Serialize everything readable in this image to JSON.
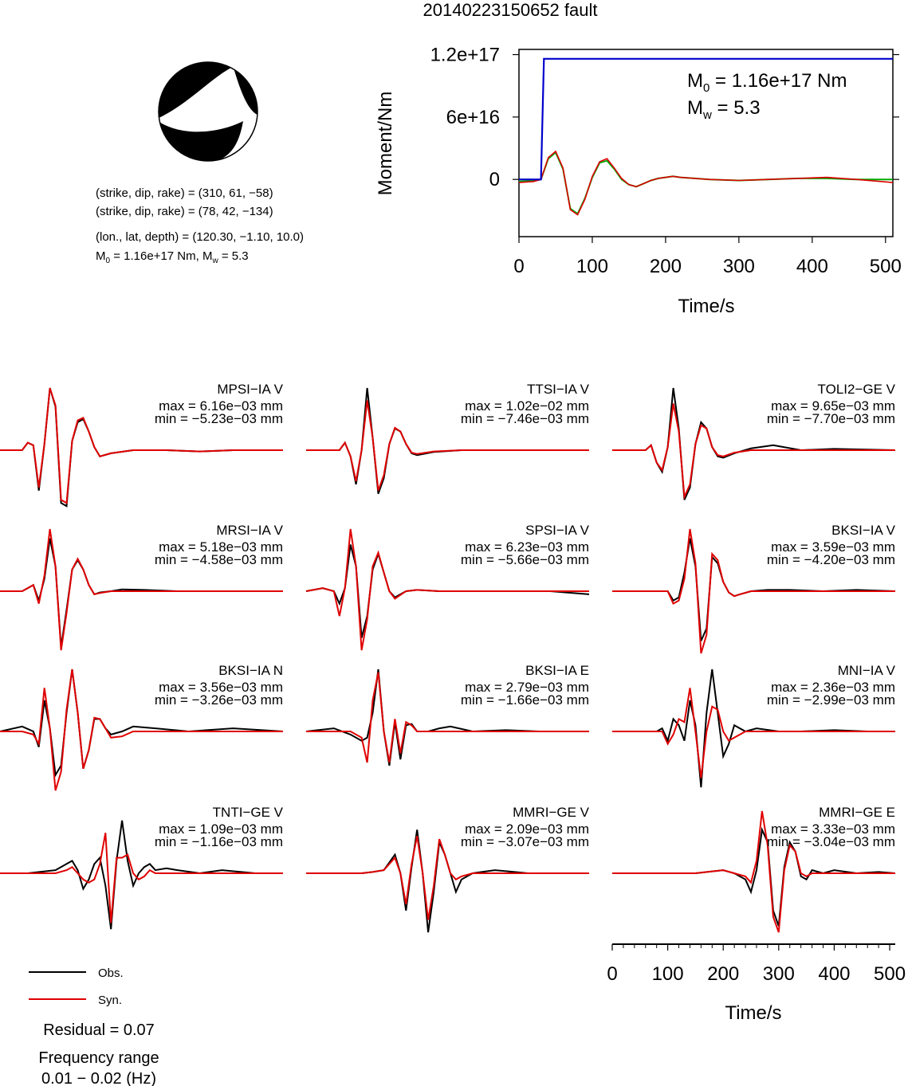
{
  "title": "20140223150652 fault",
  "colors": {
    "obs": "#000000",
    "syn": "#e00000",
    "moment": "#0000cc",
    "stf": "#00aa00",
    "axis": "#000000"
  },
  "mechanism": {
    "plane1": "(strike, dip, rake) = (310, 61, −58)",
    "plane2": "(strike, dip, rake) = (78, 42, −134)",
    "location": "(lon., lat, depth) = (120.30, −1.10, 10.0)",
    "m0_prefix": "M",
    "m0_sub": "0",
    "m0_rest": " = 1.16e+17 Nm, M",
    "mw_sub": "w",
    "mw_rest": " = 5.3"
  },
  "legend": {
    "obs": "Obs.",
    "syn": "Syn."
  },
  "residual": "Residual = 0.07",
  "frequency_label": "Frequency range",
  "frequency_value": "0.01 − 0.02 (Hz)",
  "chart_data": [
    {
      "type": "line",
      "name": "moment-plot",
      "xlabel": "Time/s",
      "ylabel": "Moment/Nm",
      "xlim": [
        0,
        510
      ],
      "ylim": [
        -5.5e+16,
        1.25e+17
      ],
      "xticks": [
        0,
        100,
        200,
        300,
        400,
        500
      ],
      "xtick_labels": [
        "0",
        "100",
        "200",
        "300",
        "400",
        "500"
      ],
      "yticks": [
        0,
        6e+16,
        1.2e+17
      ],
      "ytick_labels": [
        "0",
        "6e+16",
        "1.2e+17"
      ],
      "annotation": {
        "m0_prefix": "M",
        "m0_sub": "0",
        "m0_rest": " = 1.16e+17 Nm",
        "mw_prefix": "M",
        "mw_sub": "w",
        "mw_rest": " = 5.3"
      },
      "moment": {
        "x": [
          0,
          30,
          34,
          510
        ],
        "y": [
          0,
          0,
          1.16e+17,
          1.16e+17
        ]
      },
      "stf_curves": {
        "x": [
          0,
          20,
          30,
          40,
          50,
          60,
          70,
          80,
          90,
          100,
          110,
          120,
          130,
          140,
          150,
          160,
          170,
          180,
          190,
          200,
          210,
          220,
          240,
          260,
          300,
          340,
          380,
          420,
          460,
          510
        ],
        "green": [
          -2000000000000000.0,
          -1000000000000000.0,
          0,
          2e+16,
          2.6e+16,
          1e+16,
          -2.8e+16,
          -3.3e+16,
          -1.8e+16,
          2000000000000000.0,
          1.6e+16,
          1.8e+16,
          1e+16,
          0,
          -5000000000000000.0,
          -7000000000000000.0,
          -4000000000000000.0,
          -1000000000000000.0,
          1000000000000000.0,
          2000000000000000.0,
          3000000000000000.0,
          2000000000000000.0,
          1000000000000000.0,
          0,
          -1000000000000000.0,
          0,
          1000000000000000.0,
          1000000000000000.0,
          0,
          0
        ],
        "red": [
          -3000000000000000.0,
          -2000000000000000.0,
          0,
          2.1e+16,
          2.7e+16,
          1.1e+16,
          -2.9e+16,
          -3.4e+16,
          -1.9e+16,
          3000000000000000.0,
          1.7e+16,
          2e+16,
          1.1e+16,
          1000000000000000.0,
          -5000000000000000.0,
          -7000000000000000.0,
          -4000000000000000.0,
          -1000000000000000.0,
          1000000000000000.0,
          2000000000000000.0,
          3000000000000000.0,
          2000000000000000.0,
          1000000000000000.0,
          0,
          -1000000000000000.0,
          0,
          1000000000000000.0,
          2000000000000000.0,
          0,
          -3000000000000000.0
        ]
      }
    },
    {
      "type": "line",
      "name": "waveform-time-axis",
      "xlabel": "Time/s",
      "xlim": [
        0,
        510
      ],
      "xticks": [
        0,
        100,
        200,
        300,
        400,
        500
      ],
      "xtick_labels": [
        "0",
        "100",
        "200",
        "300",
        "400",
        "500"
      ]
    }
  ],
  "stations": [
    {
      "name": "MPSI−IA V",
      "max": "max = 6.16e−03 mm",
      "min": "min = −5.23e−03 mm",
      "x": [
        0,
        40,
        50,
        60,
        70,
        80,
        90,
        100,
        110,
        120,
        130,
        140,
        150,
        160,
        170,
        180,
        200,
        240,
        300,
        360,
        420,
        510
      ],
      "obs": [
        0,
        0,
        0.12,
        0.08,
        -0.65,
        0.1,
        1.0,
        0.7,
        -0.85,
        -0.9,
        0.15,
        0.45,
        0.5,
        0.3,
        0.05,
        -0.1,
        -0.05,
        0,
        0,
        -0.02,
        0,
        0
      ],
      "syn": [
        0,
        0,
        0.12,
        0.08,
        -0.6,
        0.1,
        1.0,
        0.72,
        -0.8,
        -0.85,
        0.15,
        0.48,
        0.52,
        0.3,
        0.05,
        -0.1,
        -0.05,
        0,
        0,
        -0.02,
        0,
        0
      ]
    },
    {
      "name": "TTSI−IA V",
      "max": "max = 1.02e−02 mm",
      "min": "min = −7.46e−03 mm",
      "x": [
        0,
        60,
        70,
        80,
        90,
        100,
        110,
        120,
        130,
        140,
        150,
        160,
        170,
        180,
        190,
        200,
        230,
        280,
        340,
        400,
        460,
        510
      ],
      "obs": [
        0,
        0,
        0.12,
        -0.1,
        -0.55,
        0.0,
        1.0,
        0.2,
        -0.7,
        -0.45,
        0.1,
        0.35,
        0.3,
        0.1,
        -0.05,
        -0.08,
        -0.03,
        0,
        0,
        0,
        0,
        0
      ],
      "syn": [
        0,
        0,
        0.12,
        -0.1,
        -0.5,
        0.0,
        0.8,
        0.2,
        -0.65,
        -0.4,
        0.1,
        0.36,
        0.3,
        0.1,
        -0.04,
        -0.06,
        -0.02,
        0,
        0,
        0,
        0,
        0
      ]
    },
    {
      "name": "TOLI2−GE V",
      "max": "max = 9.65e−03 mm",
      "min": "min = −7.70e−03 mm",
      "x": [
        0,
        60,
        70,
        80,
        90,
        100,
        110,
        120,
        130,
        140,
        150,
        160,
        170,
        180,
        190,
        200,
        220,
        250,
        290,
        340,
        400,
        510
      ],
      "obs": [
        0,
        0,
        0.08,
        -0.2,
        -0.35,
        0.05,
        1.0,
        0.35,
        -0.8,
        -0.6,
        0.1,
        0.45,
        0.35,
        0.05,
        -0.1,
        -0.12,
        -0.05,
        0.03,
        0.08,
        0.0,
        0.02,
        0
      ],
      "syn": [
        0,
        0,
        0.08,
        -0.2,
        -0.32,
        0.05,
        0.75,
        0.3,
        -0.75,
        -0.55,
        0.1,
        0.4,
        0.35,
        0.05,
        -0.08,
        -0.1,
        -0.04,
        0.0,
        0.0,
        0.0,
        0.0,
        0
      ]
    },
    {
      "name": "MRSI−IA V",
      "max": "max = 5.18e−03 mm",
      "min": "min = −4.58e−03 mm",
      "x": [
        0,
        40,
        50,
        60,
        70,
        80,
        90,
        100,
        110,
        120,
        130,
        140,
        150,
        160,
        170,
        180,
        200,
        220,
        260,
        320,
        400,
        510
      ],
      "obs": [
        0,
        0,
        0.05,
        0.1,
        -0.15,
        0.2,
        0.85,
        0.4,
        -0.9,
        -0.3,
        0.35,
        0.5,
        0.35,
        0.1,
        -0.05,
        -0.02,
        0.0,
        0.03,
        0.02,
        0,
        0,
        0
      ],
      "syn": [
        0,
        0,
        0.05,
        0.1,
        -0.2,
        0.25,
        1.0,
        0.4,
        -0.95,
        -0.35,
        0.35,
        0.52,
        0.35,
        0.1,
        -0.05,
        -0.03,
        0.0,
        0.0,
        0.0,
        0,
        0,
        0
      ]
    },
    {
      "name": "SPSI−IA V",
      "max": "max = 6.23e−03 mm",
      "min": "min = −5.66e−03 mm",
      "x": [
        0,
        30,
        50,
        60,
        70,
        80,
        90,
        100,
        110,
        120,
        130,
        140,
        150,
        160,
        170,
        180,
        200,
        240,
        300,
        360,
        440,
        510
      ],
      "obs": [
        0,
        0.05,
        0.0,
        -0.2,
        0.05,
        0.75,
        0.4,
        -0.75,
        -0.4,
        0.35,
        0.6,
        0.3,
        0.0,
        -0.1,
        -0.05,
        0.0,
        0.02,
        0,
        0,
        0,
        0,
        -0.05
      ],
      "syn": [
        0,
        0.05,
        0.0,
        -0.4,
        0.05,
        1.0,
        0.4,
        -0.95,
        -0.45,
        0.4,
        0.62,
        0.3,
        0.0,
        -0.12,
        -0.06,
        0.0,
        0.02,
        0,
        0,
        0,
        0,
        0
      ]
    },
    {
      "name": "BKSI−IA V",
      "max": "max = 3.59e−03 mm",
      "min": "min = −4.20e−03 mm",
      "x": [
        0,
        80,
        100,
        110,
        120,
        130,
        140,
        150,
        160,
        170,
        180,
        190,
        200,
        210,
        220,
        230,
        250,
        280,
        320,
        380,
        440,
        510
      ],
      "obs": [
        0,
        0,
        0.0,
        -0.15,
        -0.1,
        0.3,
        0.85,
        0.4,
        -0.8,
        -0.6,
        0.55,
        0.45,
        0.15,
        -0.02,
        -0.08,
        -0.05,
        0.0,
        0.02,
        0.02,
        0,
        0.02,
        0
      ],
      "syn": [
        0,
        0,
        0.0,
        -0.2,
        -0.15,
        0.2,
        1.0,
        0.45,
        -1.0,
        -0.7,
        0.6,
        0.5,
        0.15,
        -0.02,
        -0.08,
        -0.05,
        0.0,
        0.0,
        0.0,
        0,
        0,
        0
      ]
    },
    {
      "name": "BKSI−IA N",
      "max": "max = 3.56e−03 mm",
      "min": "min = −3.26e−03 mm",
      "x": [
        0,
        40,
        60,
        70,
        80,
        90,
        100,
        110,
        120,
        130,
        140,
        150,
        160,
        170,
        180,
        190,
        200,
        220,
        240,
        280,
        340,
        420,
        510
      ],
      "obs": [
        0,
        0.08,
        0.0,
        -0.25,
        0.5,
        0.05,
        -0.7,
        -0.55,
        0.3,
        1.0,
        0.3,
        -0.6,
        -0.3,
        0.2,
        0.2,
        0.05,
        -0.05,
        0.0,
        0.08,
        0.05,
        0.0,
        0.05,
        0
      ],
      "syn": [
        0,
        0.0,
        -0.05,
        -0.2,
        0.7,
        0.05,
        -0.95,
        -0.65,
        0.35,
        1.0,
        0.3,
        -0.6,
        -0.3,
        0.22,
        0.2,
        0.05,
        -0.1,
        -0.08,
        0.0,
        0.0,
        0.0,
        0.0,
        0
      ]
    },
    {
      "name": "BKSI−IA E",
      "max": "max = 2.79e−03 mm",
      "min": "min = −1.66e−03 mm",
      "x": [
        0,
        50,
        80,
        100,
        110,
        120,
        130,
        140,
        150,
        160,
        170,
        180,
        190,
        200,
        220,
        240,
        260,
        300,
        360,
        420,
        510
      ],
      "obs": [
        0,
        0.05,
        -0.05,
        -0.15,
        -0.1,
        0.3,
        1.0,
        0.0,
        -0.55,
        0.15,
        -0.45,
        0.1,
        0.12,
        0.0,
        0.0,
        0.05,
        0.08,
        0.0,
        0.02,
        0.0,
        0
      ],
      "syn": [
        0,
        0.0,
        0.0,
        -0.1,
        -0.5,
        0.5,
        0.95,
        0.0,
        -0.5,
        0.2,
        -0.35,
        0.15,
        0.1,
        0.0,
        0.0,
        0.0,
        0.0,
        0.0,
        0.0,
        0.0,
        0
      ]
    },
    {
      "name": "MNI−IA V",
      "max": "max = 2.36e−03 mm",
      "min": "min = −2.99e−03 mm",
      "x": [
        0,
        60,
        80,
        90,
        100,
        110,
        120,
        130,
        140,
        150,
        160,
        170,
        180,
        190,
        200,
        210,
        220,
        240,
        260,
        300,
        340,
        400,
        460,
        510
      ],
      "obs": [
        0,
        0.0,
        0.0,
        0.05,
        -0.15,
        0.2,
        0.1,
        -0.15,
        0.5,
        0.1,
        -0.9,
        0.3,
        1.0,
        0.3,
        -0.4,
        -0.2,
        0.1,
        0.0,
        0.05,
        0.0,
        0.0,
        0.02,
        0.0,
        0
      ],
      "syn": [
        0,
        0.0,
        0.0,
        0.0,
        -0.2,
        -0.05,
        0.2,
        0.15,
        0.7,
        0.0,
        -0.75,
        0.0,
        0.4,
        0.35,
        0.0,
        -0.15,
        -0.1,
        0.0,
        0.0,
        0.0,
        0.0,
        0.0,
        0.0,
        0
      ]
    },
    {
      "name": "TNTI−GE V",
      "max": "max = 1.09e−03 mm",
      "min": "min = −1.16e−03 mm",
      "x": [
        0,
        50,
        100,
        120,
        130,
        140,
        150,
        160,
        170,
        180,
        190,
        200,
        210,
        220,
        230,
        240,
        250,
        260,
        270,
        280,
        300,
        320,
        360,
        400,
        460,
        510
      ],
      "obs": [
        0,
        0.0,
        0.05,
        0.15,
        0.2,
        0.05,
        -0.25,
        -0.1,
        0.15,
        0.25,
        -0.2,
        -0.9,
        0.2,
        0.85,
        0.2,
        -0.2,
        0.0,
        0.1,
        0.15,
        0.05,
        0.08,
        0.05,
        0.0,
        0.05,
        0.0,
        0
      ],
      "syn": [
        0,
        0.0,
        0.0,
        0.05,
        0.1,
        0.0,
        -0.1,
        -0.15,
        -0.1,
        0.15,
        0.65,
        -0.8,
        0.25,
        0.25,
        0.3,
        0.0,
        -0.1,
        -0.05,
        0.05,
        0.0,
        0.0,
        0.0,
        0.0,
        0.0,
        0.0,
        0
      ]
    },
    {
      "name": "MMRI−GE V",
      "max": "max = 2.09e−03 mm",
      "min": "min = −3.07e−03 mm",
      "x": [
        0,
        60,
        100,
        120,
        140,
        160,
        170,
        180,
        190,
        200,
        210,
        220,
        230,
        240,
        250,
        260,
        270,
        280,
        300,
        340,
        400,
        510
      ],
      "obs": [
        0,
        0.0,
        0.0,
        0.02,
        0.05,
        0.3,
        0.0,
        -0.6,
        0.1,
        0.7,
        0.0,
        -0.95,
        -0.3,
        0.5,
        0.3,
        0.0,
        -0.3,
        -0.1,
        0.0,
        0.05,
        0.0,
        0
      ],
      "syn": [
        0,
        0.0,
        0.0,
        0.02,
        0.05,
        0.25,
        0.0,
        -0.5,
        0.15,
        0.6,
        0.0,
        -0.75,
        -0.2,
        0.55,
        0.3,
        0.0,
        -0.1,
        -0.05,
        0.0,
        0.0,
        0.0,
        0
      ]
    },
    {
      "name": "MMRI−GE E",
      "max": "max = 3.33e−03 mm",
      "min": "min = −3.04e−03 mm",
      "x": [
        0,
        100,
        150,
        200,
        220,
        240,
        250,
        260,
        270,
        280,
        290,
        300,
        310,
        320,
        330,
        340,
        350,
        360,
        380,
        400,
        440,
        480,
        510
      ],
      "obs": [
        0,
        0.0,
        0.0,
        0.05,
        0.0,
        -0.1,
        -0.3,
        0.05,
        0.7,
        0.5,
        -0.6,
        -0.85,
        0.1,
        0.5,
        0.35,
        -0.05,
        -0.1,
        0.05,
        0.0,
        0.05,
        0.0,
        0.02,
        0
      ],
      "syn": [
        0,
        0.0,
        0.0,
        0.05,
        0.0,
        -0.05,
        -0.15,
        0.2,
        1.0,
        0.45,
        -0.7,
        -0.95,
        0.05,
        0.45,
        0.35,
        0.0,
        -0.05,
        0.0,
        0.0,
        0.0,
        0.0,
        0.0,
        0
      ]
    }
  ]
}
